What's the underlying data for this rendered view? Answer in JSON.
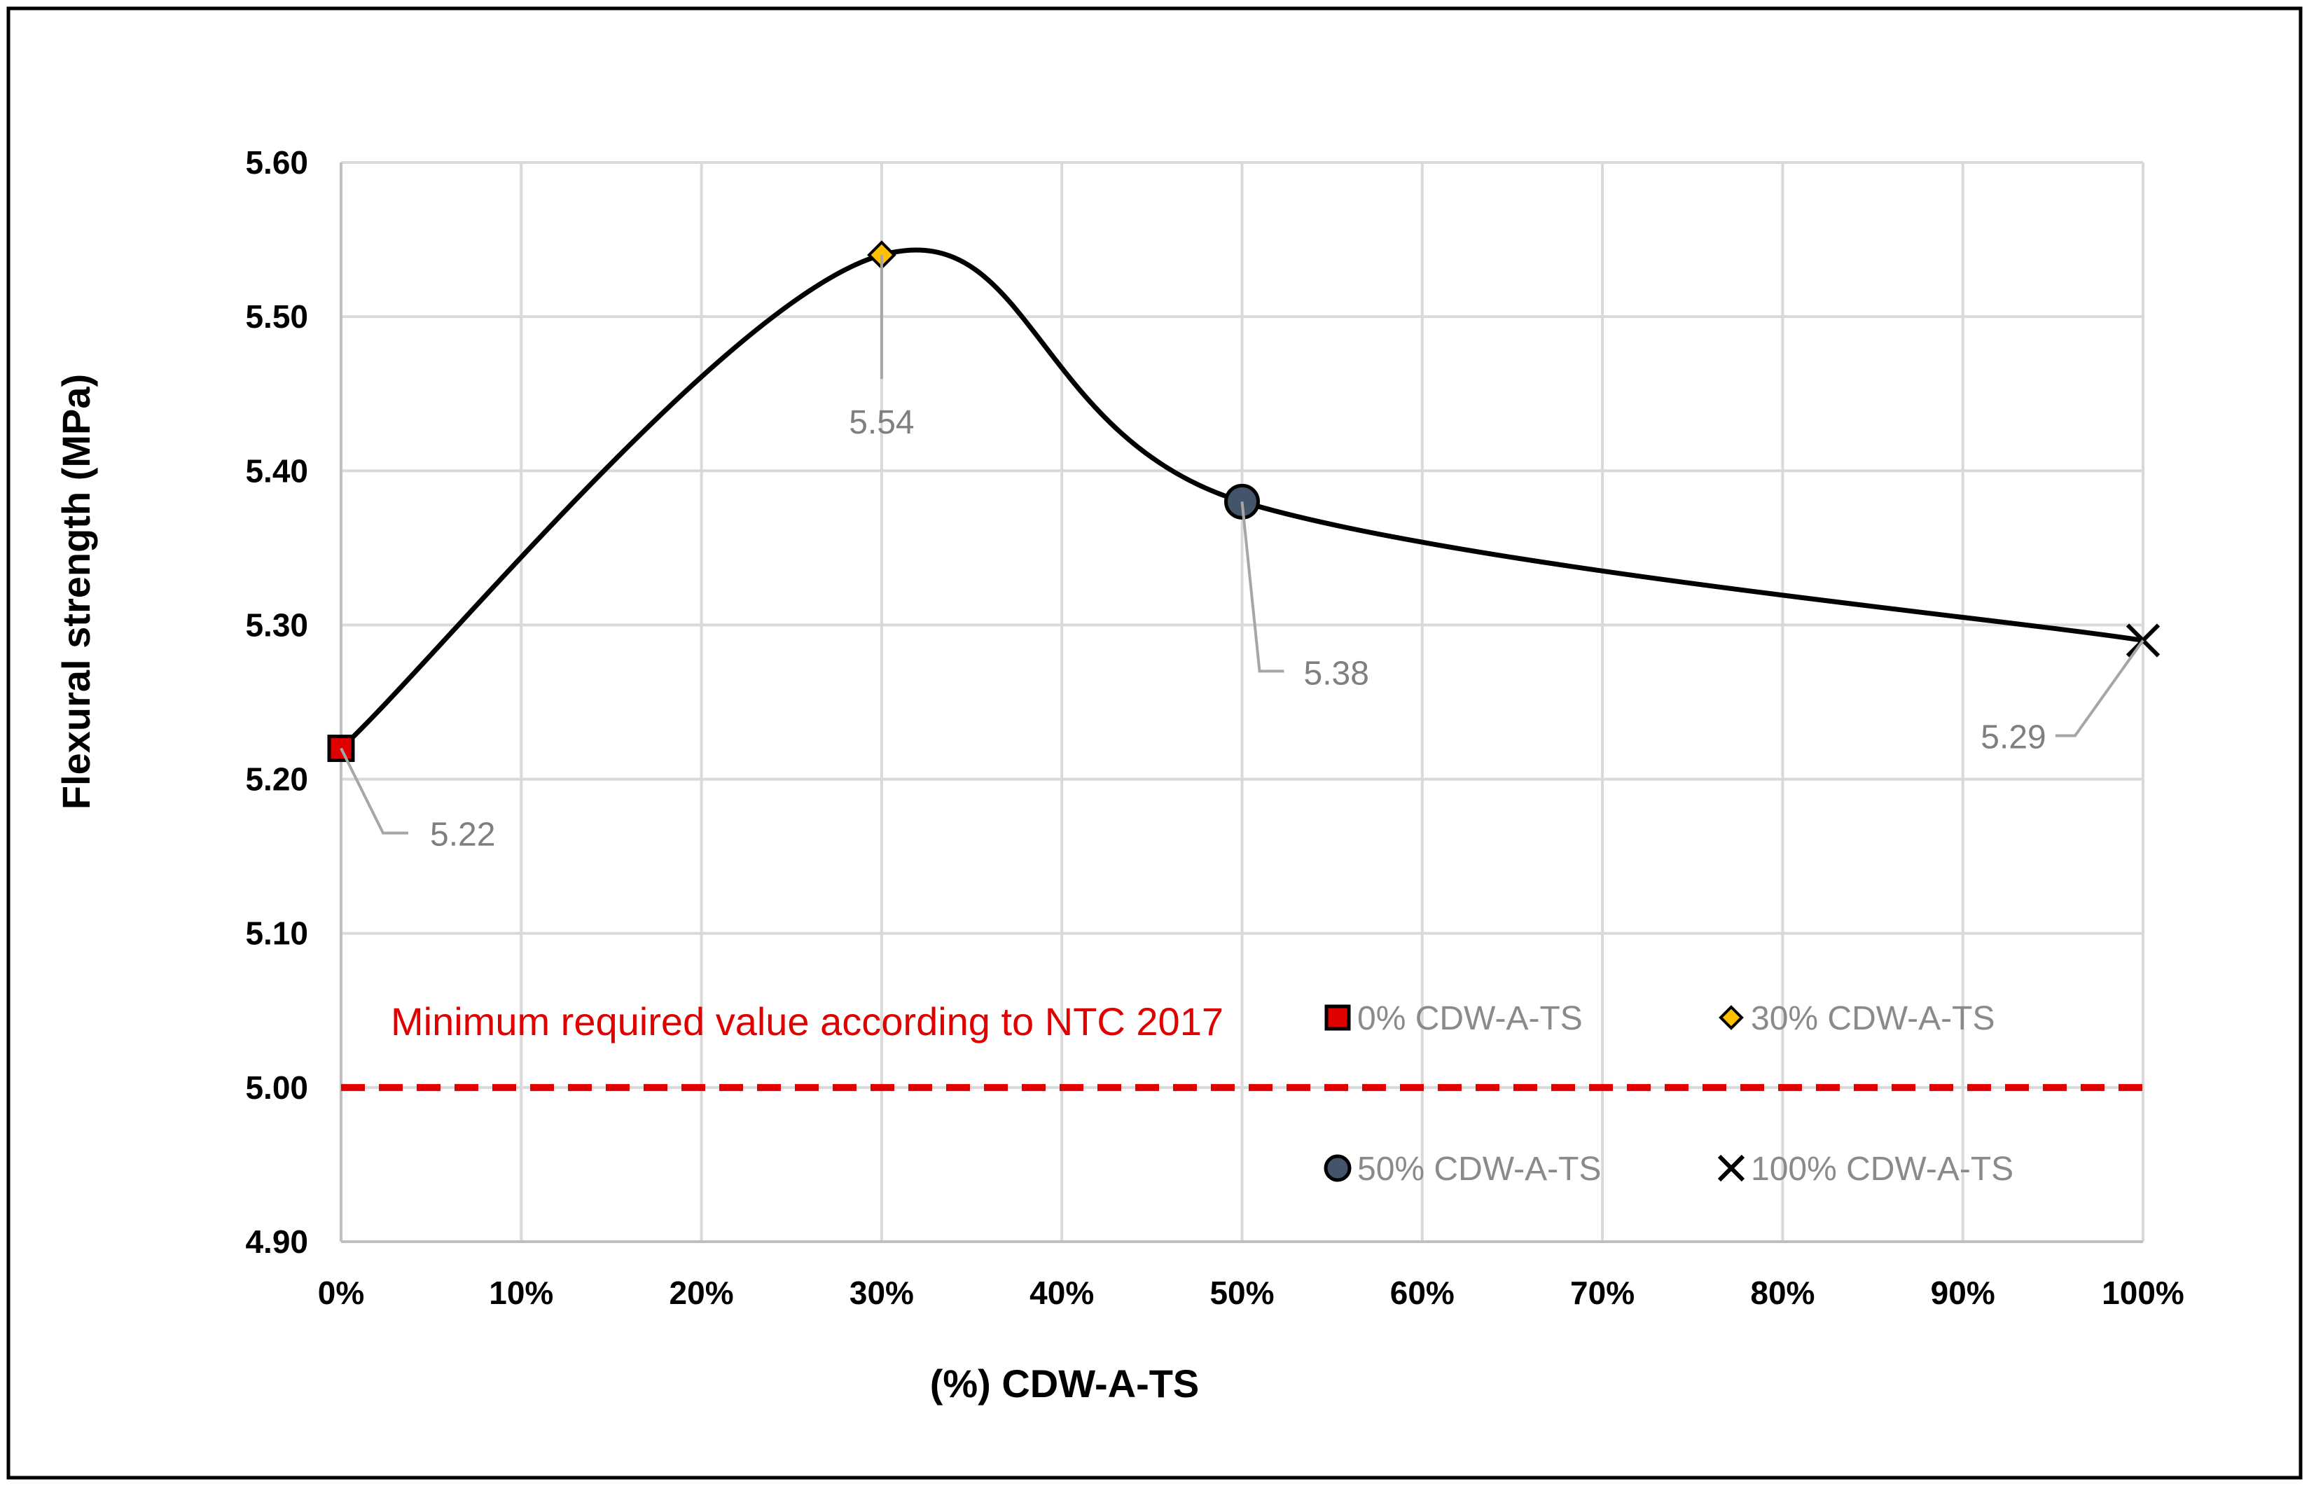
{
  "chart_data": {
    "type": "line",
    "title": "",
    "xlabel": "(%) CDW-A-TS",
    "ylabel": "Flexural strength (MPa)",
    "xlim": [
      0,
      100
    ],
    "ylim": [
      4.9,
      5.6
    ],
    "x_ticks": [
      {
        "value": 0,
        "label": "0%"
      },
      {
        "value": 10,
        "label": "10%"
      },
      {
        "value": 20,
        "label": "20%"
      },
      {
        "value": 30,
        "label": "30%"
      },
      {
        "value": 40,
        "label": "40%"
      },
      {
        "value": 50,
        "label": "50%"
      },
      {
        "value": 60,
        "label": "60%"
      },
      {
        "value": 70,
        "label": "70%"
      },
      {
        "value": 80,
        "label": "80%"
      },
      {
        "value": 90,
        "label": "90%"
      },
      {
        "value": 100,
        "label": "100%"
      }
    ],
    "y_ticks": [
      {
        "value": 4.9,
        "label": "4.90"
      },
      {
        "value": 5.0,
        "label": "5.00"
      },
      {
        "value": 5.1,
        "label": "5.10"
      },
      {
        "value": 5.2,
        "label": "5.20"
      },
      {
        "value": 5.3,
        "label": "5.30"
      },
      {
        "value": 5.4,
        "label": "5.40"
      },
      {
        "value": 5.5,
        "label": "5.50"
      },
      {
        "value": 5.6,
        "label": "5.60"
      }
    ],
    "grid": true,
    "series": [
      {
        "name": "0% CDW-A-TS",
        "marker": "square",
        "color": "#e00000",
        "x": 0,
        "y": 5.22,
        "label": "5.22"
      },
      {
        "name": "30% CDW-A-TS",
        "marker": "diamond",
        "color": "#ffc000",
        "x": 30,
        "y": 5.54,
        "label": "5.54"
      },
      {
        "name": "50% CDW-A-TS",
        "marker": "circle",
        "color": "#44546a",
        "x": 50,
        "y": 5.38,
        "label": "5.38"
      },
      {
        "name": "100% CDW-A-TS",
        "marker": "x",
        "color": "#000000",
        "x": 100,
        "y": 5.29,
        "label": "5.29"
      }
    ],
    "reference_line": {
      "y": 5.0,
      "label": "Minimum required value according to NTC 2017",
      "color": "#e00000"
    },
    "curve_color": "#000000"
  }
}
